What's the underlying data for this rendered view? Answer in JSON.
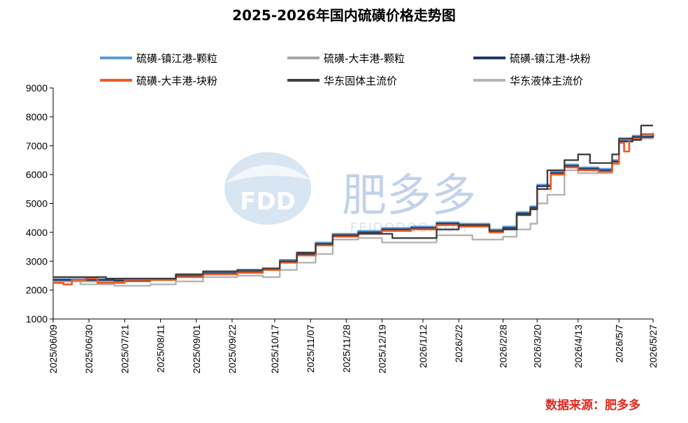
{
  "chart_data": {
    "type": "line",
    "title": "2025-2026年国内硫磺价格走势图",
    "ylim": [
      1000,
      9000
    ],
    "yticks": [
      1000,
      2000,
      3000,
      4000,
      5000,
      6000,
      7000,
      8000,
      9000
    ],
    "xlim": [
      "2025-06-09",
      "2026-05-27"
    ],
    "xticks": [
      "2025/06/09",
      "2025/06/30",
      "2025/07/21",
      "2025/08/11",
      "2025/09/01",
      "2025/09/22",
      "2025/10/17",
      "2025/11/07",
      "2025/11/28",
      "2025/12/19",
      "2026/1/12",
      "2026/2/2",
      "2026/2/28",
      "2026/3/20",
      "2026/4/13",
      "2026/5/7",
      "2026/5/27"
    ],
    "grid": false,
    "legend": "top",
    "series": [
      {
        "name": "硫磺-镇江港-颗粒",
        "color": "#5b9bd5",
        "points": [
          [
            "2025-06-09",
            2380
          ],
          [
            "2025-06-25",
            2380
          ],
          [
            "2025-07-15",
            2350
          ],
          [
            "2025-08-05",
            2380
          ],
          [
            "2025-08-20",
            2500
          ],
          [
            "2025-09-05",
            2600
          ],
          [
            "2025-09-25",
            2650
          ],
          [
            "2025-10-10",
            2750
          ],
          [
            "2025-10-20",
            3050
          ],
          [
            "2025-10-30",
            3300
          ],
          [
            "2025-11-10",
            3650
          ],
          [
            "2025-11-20",
            3950
          ],
          [
            "2025-12-05",
            4050
          ],
          [
            "2025-12-19",
            4150
          ],
          [
            "2026-01-05",
            4200
          ],
          [
            "2026-01-20",
            4350
          ],
          [
            "2026-02-02",
            4300
          ],
          [
            "2026-02-20",
            4100
          ],
          [
            "2026-02-28",
            4200
          ],
          [
            "2026-03-08",
            4700
          ],
          [
            "2026-03-16",
            4900
          ],
          [
            "2026-03-20",
            5650
          ],
          [
            "2026-03-28",
            6100
          ],
          [
            "2026-04-05",
            6350
          ],
          [
            "2026-04-13",
            6250
          ],
          [
            "2026-04-25",
            6200
          ],
          [
            "2026-05-03",
            6500
          ],
          [
            "2026-05-07",
            7200
          ],
          [
            "2026-05-15",
            7350
          ],
          [
            "2026-05-27",
            7450
          ]
        ]
      },
      {
        "name": "硫磺-大丰港-颗粒",
        "color": "#a5a5a5",
        "points": [
          [
            "2025-06-09",
            2300
          ],
          [
            "2025-06-25",
            2300
          ],
          [
            "2025-07-15",
            2300
          ],
          [
            "2025-08-05",
            2350
          ],
          [
            "2025-08-20",
            2480
          ],
          [
            "2025-09-05",
            2580
          ],
          [
            "2025-09-25",
            2620
          ],
          [
            "2025-10-10",
            2700
          ],
          [
            "2025-10-20",
            3000
          ],
          [
            "2025-10-30",
            3250
          ],
          [
            "2025-11-10",
            3600
          ],
          [
            "2025-11-20",
            3900
          ],
          [
            "2025-12-05",
            4000
          ],
          [
            "2025-12-19",
            4100
          ],
          [
            "2026-01-05",
            4150
          ],
          [
            "2026-01-20",
            4300
          ],
          [
            "2026-02-02",
            4250
          ],
          [
            "2026-02-20",
            4050
          ],
          [
            "2026-02-28",
            4150
          ],
          [
            "2026-03-08",
            4650
          ],
          [
            "2026-03-16",
            4850
          ],
          [
            "2026-03-20",
            5600
          ],
          [
            "2026-03-28",
            6050
          ],
          [
            "2026-04-05",
            6300
          ],
          [
            "2026-04-13",
            6200
          ],
          [
            "2026-04-25",
            6150
          ],
          [
            "2026-05-03",
            6450
          ],
          [
            "2026-05-07",
            7150
          ],
          [
            "2026-05-15",
            7300
          ],
          [
            "2026-05-27",
            7400
          ]
        ]
      },
      {
        "name": "硫磺-镇江港-块粉",
        "color": "#1f3864",
        "points": [
          [
            "2025-06-09",
            2350
          ],
          [
            "2025-06-25",
            2350
          ],
          [
            "2025-07-15",
            2330
          ],
          [
            "2025-08-05",
            2350
          ],
          [
            "2025-08-20",
            2480
          ],
          [
            "2025-09-05",
            2580
          ],
          [
            "2025-09-25",
            2630
          ],
          [
            "2025-10-10",
            2720
          ],
          [
            "2025-10-20",
            3000
          ],
          [
            "2025-10-30",
            3250
          ],
          [
            "2025-11-10",
            3600
          ],
          [
            "2025-11-20",
            3900
          ],
          [
            "2025-12-05",
            4000
          ],
          [
            "2025-12-19",
            4100
          ],
          [
            "2026-01-05",
            4150
          ],
          [
            "2026-01-20",
            4300
          ],
          [
            "2026-02-02",
            4250
          ],
          [
            "2026-02-20",
            4050
          ],
          [
            "2026-02-28",
            4150
          ],
          [
            "2026-03-08",
            4650
          ],
          [
            "2026-03-16",
            4850
          ],
          [
            "2026-03-20",
            5600
          ],
          [
            "2026-03-28",
            6050
          ],
          [
            "2026-04-05",
            6300
          ],
          [
            "2026-04-13",
            6200
          ],
          [
            "2026-04-25",
            6150
          ],
          [
            "2026-05-03",
            6450
          ],
          [
            "2026-05-07",
            7150
          ],
          [
            "2026-05-15",
            7300
          ],
          [
            "2026-05-27",
            7400
          ]
        ]
      },
      {
        "name": "硫磺-大丰港-块粉",
        "color": "#ed5a24",
        "points": [
          [
            "2025-06-09",
            2250
          ],
          [
            "2025-06-15",
            2200
          ],
          [
            "2025-06-20",
            2350
          ],
          [
            "2025-06-28",
            2400
          ],
          [
            "2025-07-05",
            2250
          ],
          [
            "2025-07-15",
            2250
          ],
          [
            "2025-07-21",
            2350
          ],
          [
            "2025-08-05",
            2350
          ],
          [
            "2025-08-20",
            2450
          ],
          [
            "2025-09-05",
            2550
          ],
          [
            "2025-09-25",
            2600
          ],
          [
            "2025-10-10",
            2700
          ],
          [
            "2025-10-20",
            2950
          ],
          [
            "2025-10-30",
            3200
          ],
          [
            "2025-11-10",
            3550
          ],
          [
            "2025-11-20",
            3850
          ],
          [
            "2025-12-05",
            3950
          ],
          [
            "2025-12-12",
            3950
          ],
          [
            "2025-12-19",
            4050
          ],
          [
            "2026-01-05",
            4100
          ],
          [
            "2026-01-20",
            4250
          ],
          [
            "2026-02-02",
            4200
          ],
          [
            "2026-02-20",
            4000
          ],
          [
            "2026-02-28",
            4100
          ],
          [
            "2026-03-08",
            4600
          ],
          [
            "2026-03-16",
            4800
          ],
          [
            "2026-03-20",
            5500
          ],
          [
            "2026-03-28",
            6000
          ],
          [
            "2026-04-05",
            6250
          ],
          [
            "2026-04-13",
            6150
          ],
          [
            "2026-04-25",
            6100
          ],
          [
            "2026-05-03",
            6400
          ],
          [
            "2026-05-07",
            7100
          ],
          [
            "2026-05-10",
            6800
          ],
          [
            "2026-05-13",
            7250
          ],
          [
            "2026-05-20",
            7400
          ],
          [
            "2026-05-27",
            7350
          ]
        ]
      },
      {
        "name": "华东固体主流价",
        "color": "#404040",
        "points": [
          [
            "2025-06-09",
            2450
          ],
          [
            "2025-06-30",
            2450
          ],
          [
            "2025-07-10",
            2400
          ],
          [
            "2025-08-05",
            2400
          ],
          [
            "2025-08-20",
            2550
          ],
          [
            "2025-09-05",
            2650
          ],
          [
            "2025-09-25",
            2700
          ],
          [
            "2025-10-10",
            2750
          ],
          [
            "2025-10-20",
            3000
          ],
          [
            "2025-10-30",
            3300
          ],
          [
            "2025-11-10",
            3600
          ],
          [
            "2025-11-20",
            3900
          ],
          [
            "2025-12-05",
            3950
          ],
          [
            "2025-12-19",
            3950
          ],
          [
            "2025-12-25",
            3800
          ],
          [
            "2026-01-12",
            3800
          ],
          [
            "2026-01-20",
            4100
          ],
          [
            "2026-02-02",
            4250
          ],
          [
            "2026-02-20",
            4050
          ],
          [
            "2026-02-28",
            4100
          ],
          [
            "2026-03-08",
            4600
          ],
          [
            "2026-03-16",
            4800
          ],
          [
            "2026-03-20",
            5500
          ],
          [
            "2026-03-26",
            6150
          ],
          [
            "2026-04-05",
            6500
          ],
          [
            "2026-04-13",
            6700
          ],
          [
            "2026-04-20",
            6400
          ],
          [
            "2026-04-28",
            6400
          ],
          [
            "2026-05-03",
            6700
          ],
          [
            "2026-05-07",
            7250
          ],
          [
            "2026-05-15",
            7200
          ],
          [
            "2026-05-20",
            7700
          ],
          [
            "2026-05-27",
            7700
          ]
        ]
      },
      {
        "name": "华东液体主流价",
        "color": "#b4b4b4",
        "points": [
          [
            "2025-06-09",
            2300
          ],
          [
            "2025-06-25",
            2200
          ],
          [
            "2025-07-15",
            2150
          ],
          [
            "2025-08-05",
            2200
          ],
          [
            "2025-08-20",
            2300
          ],
          [
            "2025-09-05",
            2450
          ],
          [
            "2025-09-25",
            2500
          ],
          [
            "2025-10-10",
            2450
          ],
          [
            "2025-10-20",
            2700
          ],
          [
            "2025-10-30",
            2950
          ],
          [
            "2025-11-10",
            3250
          ],
          [
            "2025-11-20",
            3750
          ],
          [
            "2025-12-05",
            3800
          ],
          [
            "2025-12-19",
            3650
          ],
          [
            "2026-01-05",
            3650
          ],
          [
            "2026-01-20",
            3900
          ],
          [
            "2026-02-02",
            3900
          ],
          [
            "2026-02-10",
            3750
          ],
          [
            "2026-02-28",
            3850
          ],
          [
            "2026-03-08",
            4100
          ],
          [
            "2026-03-16",
            4300
          ],
          [
            "2026-03-20",
            5000
          ],
          [
            "2026-03-26",
            5300
          ],
          [
            "2026-04-05",
            6150
          ],
          [
            "2026-04-13",
            6050
          ],
          [
            "2026-04-25",
            6050
          ],
          [
            "2026-05-03",
            6350
          ],
          [
            "2026-05-07",
            7150
          ],
          [
            "2026-05-15",
            7250
          ],
          [
            "2026-05-27",
            7450
          ]
        ]
      }
    ]
  },
  "watermark": {
    "brand": "FDD",
    "name": "肥多多",
    "domain": "FEIDODOO.COM"
  },
  "source": "数据来源：肥多多"
}
